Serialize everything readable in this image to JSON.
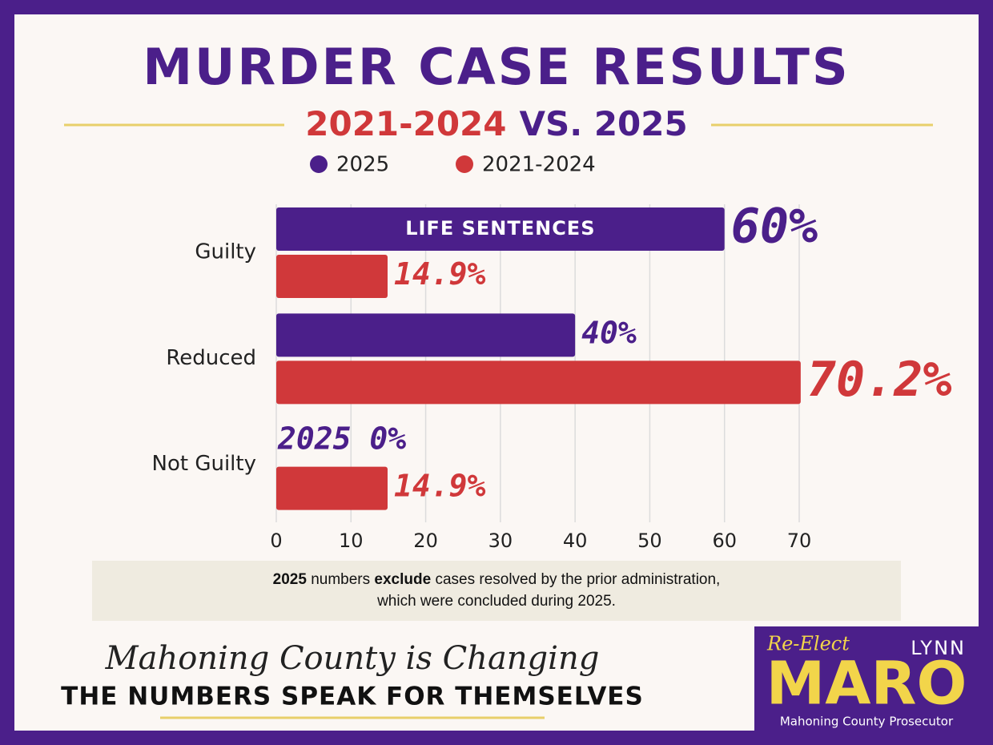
{
  "chart_data": {
    "type": "hbar",
    "title": "MURDER CASE RESULTS",
    "subtitle_parts": [
      "2021-2024",
      "VS. 2025"
    ],
    "categories": [
      "Guilty",
      "Reduced",
      "Not Guilty"
    ],
    "series": [
      {
        "name": "2025",
        "color": "#4b1f8a",
        "values": [
          60,
          40,
          0
        ],
        "value_labels": [
          "60%",
          "40%",
          "2025 0%"
        ]
      },
      {
        "name": "2021-2024",
        "color": "#d0383a",
        "values": [
          14.9,
          70.2,
          14.9
        ],
        "value_labels": [
          "14.9%",
          "70.2%",
          "14.9%"
        ]
      }
    ],
    "bar_annotation": "LIFE SENTENCES",
    "xlim": [
      0,
      70
    ],
    "xticks": [
      0,
      10,
      20,
      30,
      40,
      50,
      60,
      70
    ],
    "grid": true,
    "legend": "top",
    "note": [
      "2025",
      " numbers ",
      "exclude",
      " cases resolved by the prior administration,",
      "which were concluded during 2025."
    ],
    "footer_script": "Mahoning County is Changing",
    "footer_tagline": "THE NUMBERS SPEAK FOR THEMSELVES",
    "logo": {
      "reelect": "Re-Elect",
      "first_name": "LYNN",
      "last_name": "MARO",
      "office": "Mahoning County Prosecutor"
    }
  }
}
